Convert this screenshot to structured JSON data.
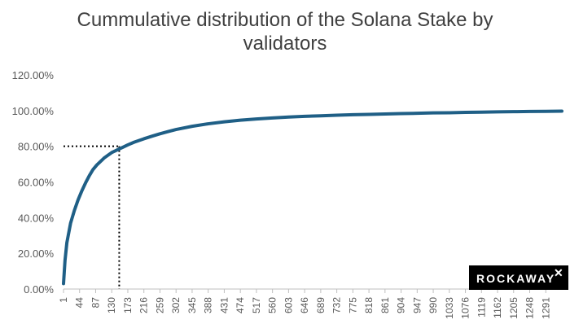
{
  "title_line1": "Cummulative distribution of the Solana Stake by",
  "title_line2": "validators",
  "logo": {
    "text": "ROCKAWAY",
    "mark": "✕",
    "background": "#000000",
    "mark_color": "#9edb3a"
  },
  "colors": {
    "line": "#1f5f86",
    "axis": "#bfbfbf",
    "guide": "#000000"
  },
  "chart_data": {
    "type": "line",
    "x_ticks": [
      1,
      44,
      87,
      130,
      173,
      216,
      259,
      302,
      345,
      388,
      431,
      474,
      517,
      560,
      603,
      646,
      689,
      732,
      775,
      818,
      861,
      904,
      947,
      990,
      1033,
      1076,
      1119,
      1162,
      1205,
      1248,
      1291
    ],
    "y_ticks": [
      "0.00%",
      "20.00%",
      "40.00%",
      "60.00%",
      "80.00%",
      "100.00%",
      "120.00%"
    ],
    "ylim": [
      0,
      120
    ],
    "xlim": [
      1,
      1334
    ],
    "grid": false,
    "series": [
      {
        "x": [
          1,
          5,
          10,
          20,
          30,
          40,
          50,
          60,
          70,
          80,
          90,
          100,
          110,
          120,
          130,
          140,
          150,
          160,
          173,
          190,
          216,
          240,
          259,
          280,
          302,
          345,
          388,
          431,
          474,
          517,
          560,
          603,
          646,
          689,
          732,
          775,
          818,
          861,
          904,
          947,
          990,
          1033,
          1076,
          1119,
          1162,
          1205,
          1248,
          1291,
          1334
        ],
        "values": [
          3,
          16,
          26,
          37,
          44,
          50,
          55,
          59.5,
          63.5,
          67,
          69.5,
          71.5,
          73.5,
          75,
          76.5,
          77.5,
          78.5,
          79.5,
          80.8,
          82.3,
          84.2,
          85.8,
          87,
          88.2,
          89.4,
          91.2,
          92.6,
          93.7,
          94.6,
          95.3,
          95.9,
          96.4,
          96.8,
          97.1,
          97.4,
          97.7,
          97.9,
          98.1,
          98.3,
          98.5,
          98.7,
          98.8,
          99,
          99.1,
          99.3,
          99.4,
          99.5,
          99.6,
          99.7
        ]
      }
    ],
    "annotation": {
      "x": 150,
      "y": 80
    }
  }
}
